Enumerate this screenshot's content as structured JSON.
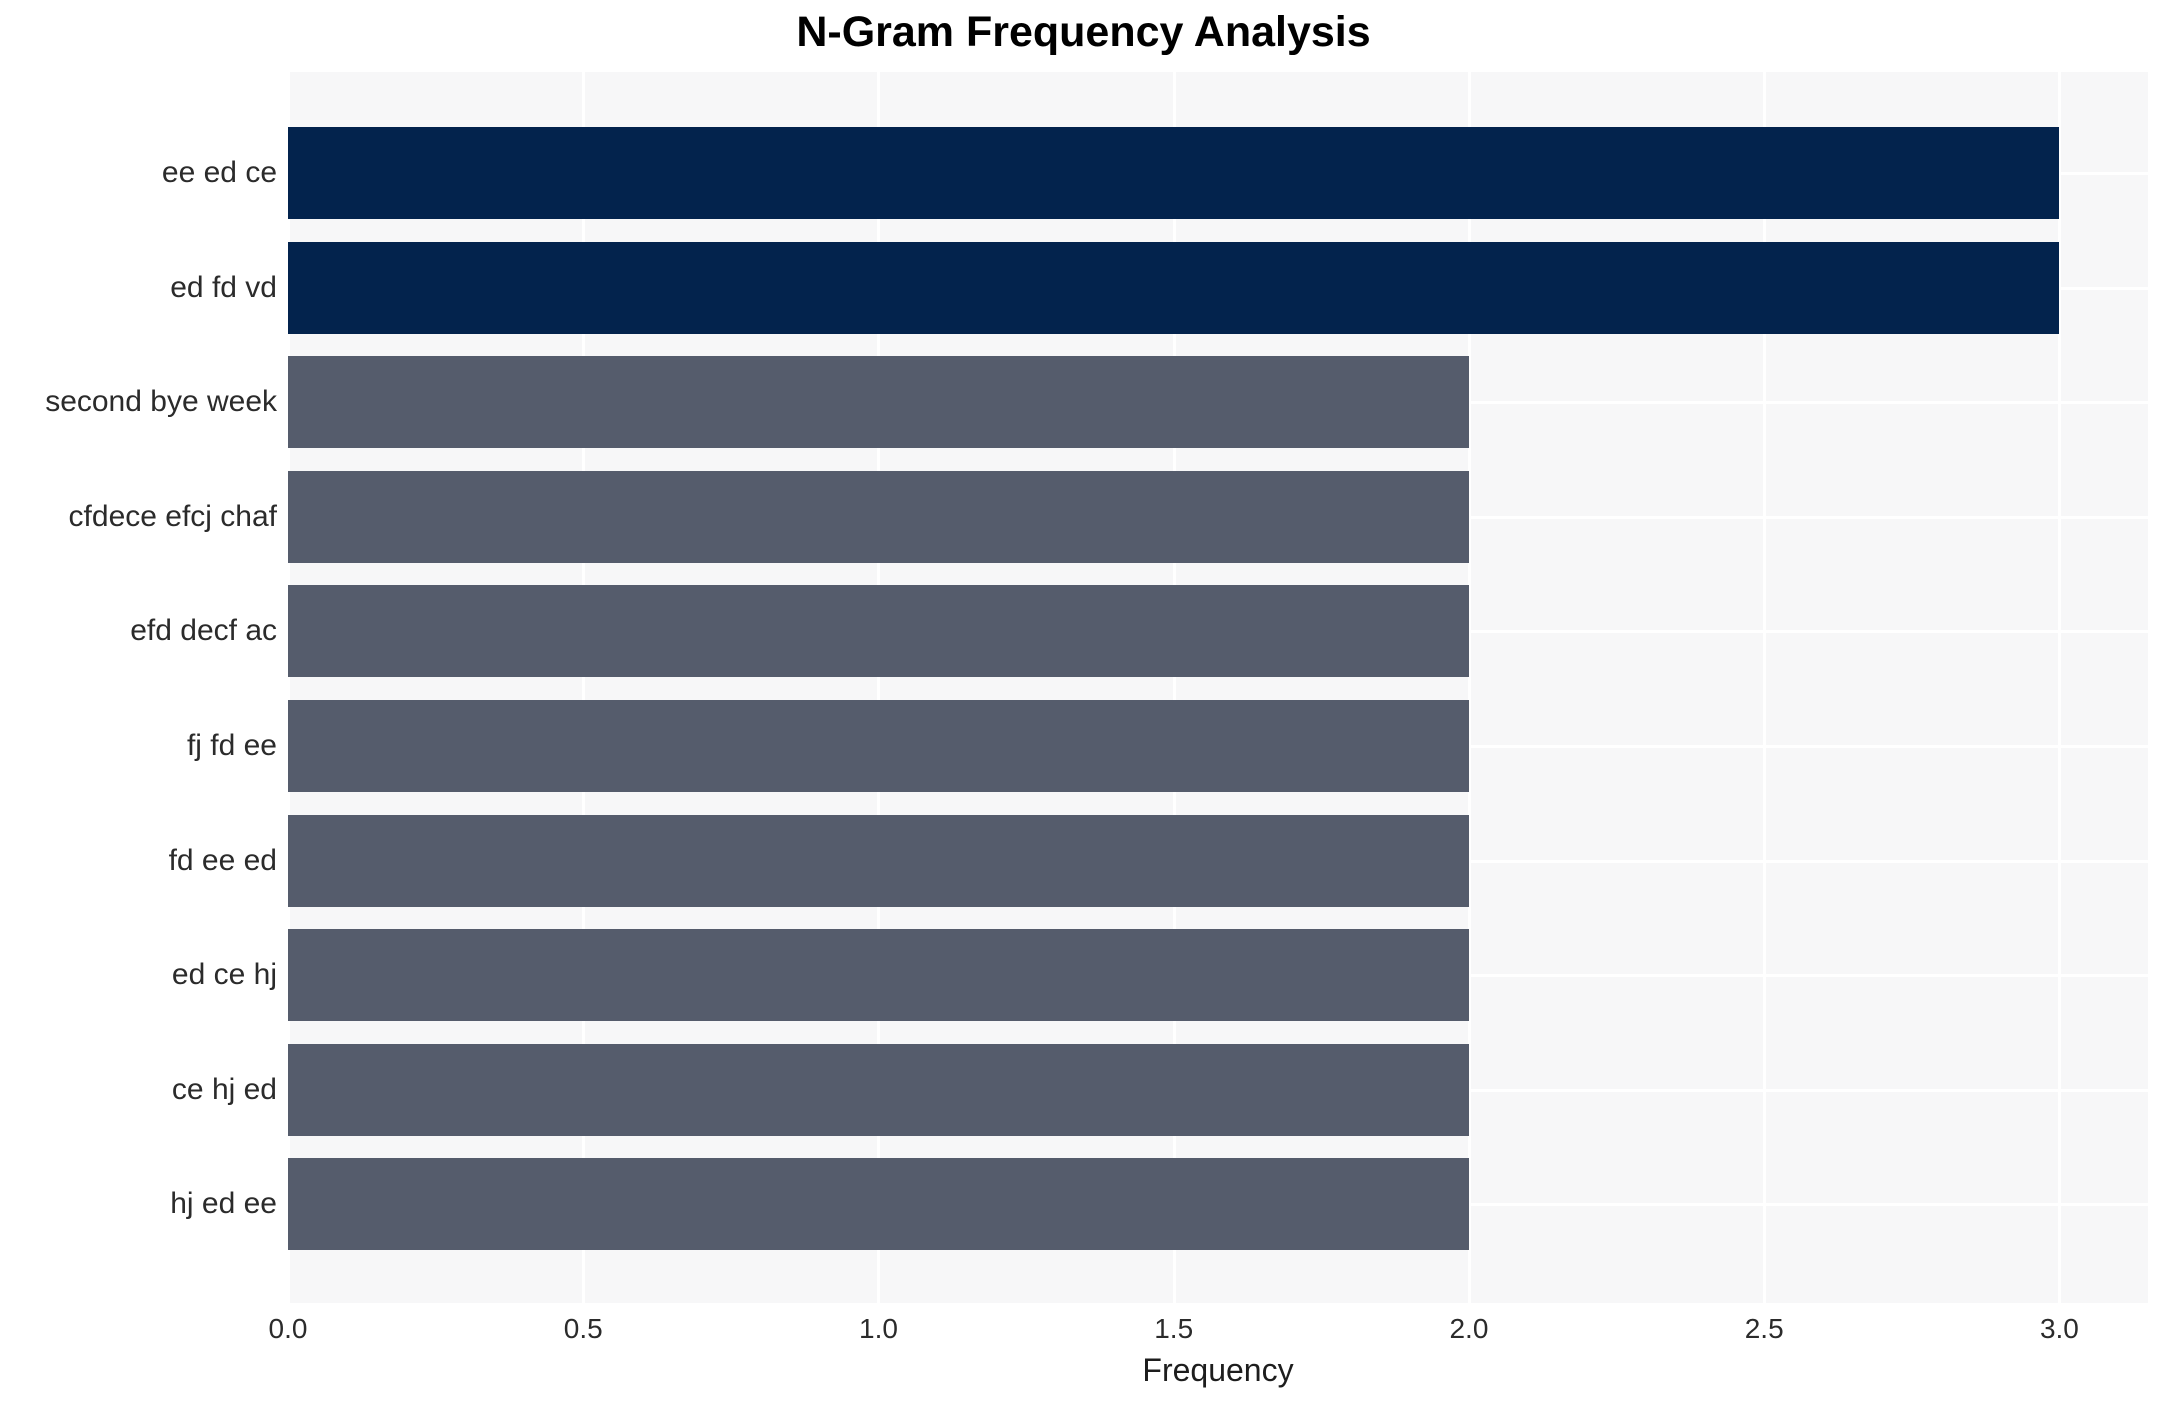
{
  "chart_data": {
    "type": "bar",
    "orientation": "horizontal",
    "title": "N-Gram Frequency Analysis",
    "xlabel": "Frequency",
    "ylabel": "",
    "categories": [
      "ee ed ce",
      "ed fd vd",
      "second bye week",
      "cfdece efcj chaf",
      "efd decf ac",
      "fj fd ee",
      "fd ee ed",
      "ed ce hj",
      "ce hj ed",
      "hj ed ee"
    ],
    "values": [
      3,
      3,
      2,
      2,
      2,
      2,
      2,
      2,
      2,
      2
    ],
    "bar_color_roles": [
      "highlight",
      "highlight",
      "default",
      "default",
      "default",
      "default",
      "default",
      "default",
      "default",
      "default"
    ],
    "x_ticks": [
      0.0,
      0.5,
      1.0,
      1.5,
      2.0,
      2.5,
      3.0
    ],
    "x_tick_labels": [
      "0.0",
      "0.5",
      "1.0",
      "1.5",
      "2.0",
      "2.5",
      "3.0"
    ],
    "xlim": [
      0,
      3.15
    ],
    "grid": true,
    "legend_position": "none",
    "colors": {
      "highlight_bar": "#03234d",
      "default_bar": "#555c6c",
      "plot_background": "#f7f7f8",
      "gridline": "#ffffff",
      "tick_text": "#2b2b2b",
      "title_text": "#000000"
    }
  }
}
